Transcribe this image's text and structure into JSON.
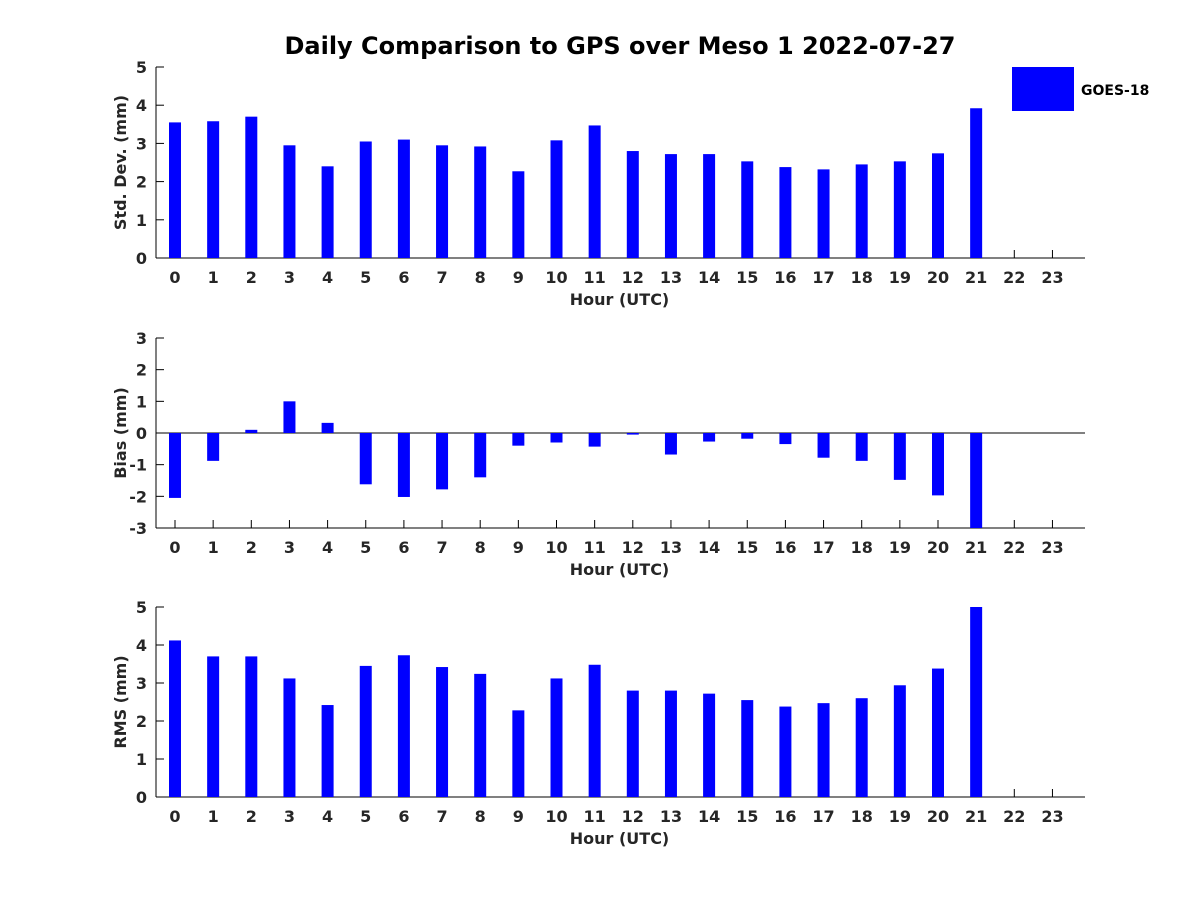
{
  "chart_data": {
    "title": "Daily Comparison to GPS over Meso 1 2022-07-27",
    "type": "bar",
    "color": "#0000ff",
    "legend": {
      "label": "GOES-18",
      "placement": "top-right"
    },
    "x": [
      0,
      1,
      2,
      3,
      4,
      5,
      6,
      7,
      8,
      9,
      10,
      11,
      12,
      13,
      14,
      15,
      16,
      17,
      18,
      19,
      20,
      21,
      22,
      23
    ],
    "xlabel": "Hour (UTC)",
    "panels": [
      {
        "name": "std",
        "ylabel": "Std. Dev. (mm)",
        "ylim": [
          0,
          5
        ],
        "yticks": [
          0,
          1,
          2,
          3,
          4,
          5
        ],
        "zero_line": false,
        "values": [
          3.55,
          3.58,
          3.7,
          2.95,
          2.4,
          3.05,
          3.1,
          2.95,
          2.92,
          2.27,
          3.08,
          3.47,
          2.8,
          2.72,
          2.72,
          2.53,
          2.38,
          2.32,
          2.45,
          2.53,
          2.74,
          3.92,
          null,
          null
        ]
      },
      {
        "name": "bias",
        "ylabel": "Bias (mm)",
        "ylim": [
          -3,
          3
        ],
        "yticks": [
          -3,
          -2,
          -1,
          0,
          1,
          2,
          3
        ],
        "zero_line": true,
        "values": [
          -2.05,
          -0.88,
          0.1,
          1.0,
          0.32,
          -1.62,
          -2.02,
          -1.78,
          -1.4,
          -0.4,
          -0.3,
          -0.43,
          -0.05,
          -0.68,
          -0.27,
          -0.18,
          -0.35,
          -0.78,
          -0.88,
          -1.48,
          -1.97,
          -3.0,
          null,
          null
        ]
      },
      {
        "name": "rms",
        "ylabel": "RMS (mm)",
        "ylim": [
          0,
          5
        ],
        "yticks": [
          0,
          1,
          2,
          3,
          4,
          5
        ],
        "zero_line": false,
        "values": [
          4.12,
          3.7,
          3.7,
          3.12,
          2.42,
          3.45,
          3.73,
          3.42,
          3.24,
          2.28,
          3.12,
          3.48,
          2.8,
          2.8,
          2.72,
          2.55,
          2.38,
          2.47,
          2.6,
          2.94,
          3.38,
          5.0,
          null,
          null
        ]
      }
    ]
  }
}
